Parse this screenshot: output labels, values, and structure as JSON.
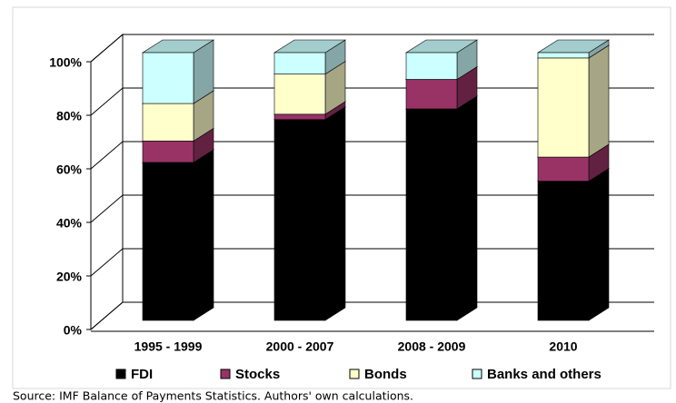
{
  "chart_data": {
    "type": "stacked-bar-3d",
    "categories": [
      "1995 - 1999",
      "2000 - 2007",
      "2008 - 2009",
      "2010"
    ],
    "series": [
      {
        "name": "FDI",
        "color": "#000000",
        "values": [
          59,
          75,
          79,
          52
        ]
      },
      {
        "name": "Stocks",
        "color": "#993366",
        "values": [
          8,
          2,
          11,
          9
        ]
      },
      {
        "name": "Bonds",
        "color": "#ffffcc",
        "values": [
          14,
          15,
          0,
          37
        ]
      },
      {
        "name": "Banks and others",
        "color": "#ccffff",
        "values": [
          19,
          8,
          10,
          2
        ]
      }
    ],
    "ylim": [
      0,
      100
    ],
    "yticks": [
      {
        "value": 0,
        "label": "0%"
      },
      {
        "value": 20,
        "label": "20%"
      },
      {
        "value": 40,
        "label": "40%"
      },
      {
        "value": 60,
        "label": "60%"
      },
      {
        "value": 80,
        "label": "80%"
      },
      {
        "value": 100,
        "label": "100%"
      }
    ],
    "grid": true,
    "legend": "bottom",
    "note": "Source: IMF Balance of Payments Statistics. Authors' own calculations."
  }
}
